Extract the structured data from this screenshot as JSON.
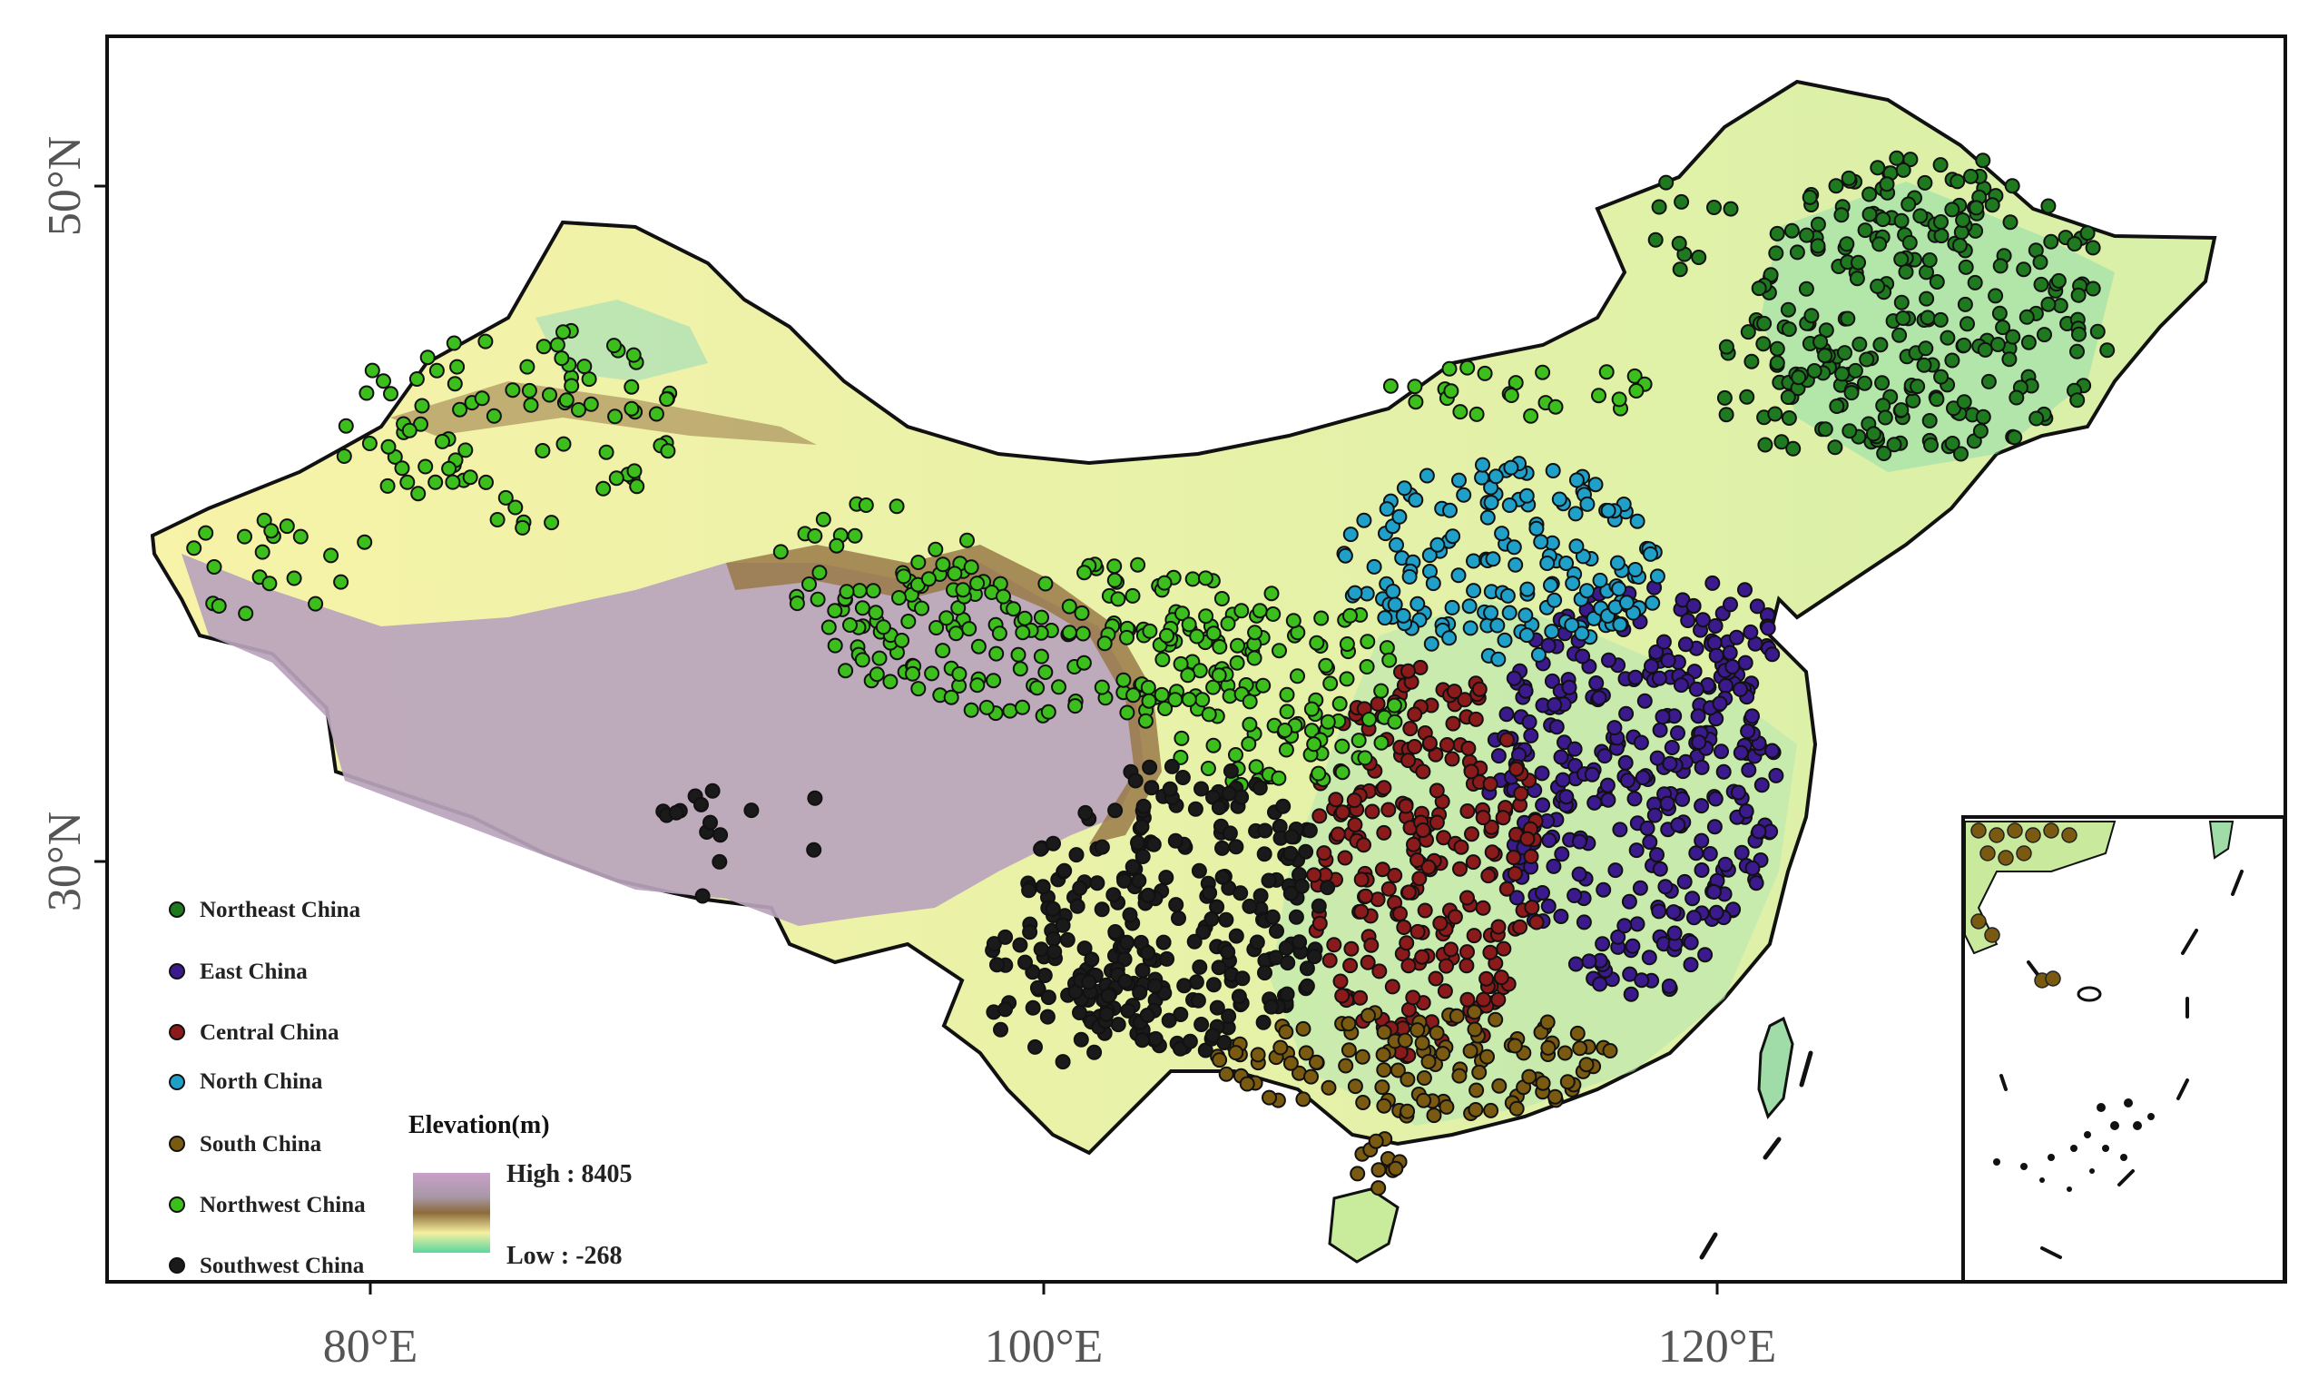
{
  "axes": {
    "x_ticks": [
      {
        "lon": 80,
        "label": "80°E"
      },
      {
        "lon": 100,
        "label": "100°E"
      },
      {
        "lon": 120,
        "label": "120°E"
      }
    ],
    "y_ticks": [
      {
        "lat": 50,
        "label": "50°N"
      },
      {
        "lat": 30,
        "label": "30°N"
      }
    ]
  },
  "legend": {
    "regions": [
      {
        "label": "Northeast China",
        "color": "#1f7a1f"
      },
      {
        "label": "East China",
        "color": "#3a1a8c"
      },
      {
        "label": "Central China",
        "color": "#8b1a1a"
      },
      {
        "label": "North China",
        "color": "#1fa0c8"
      },
      {
        "label": "South China",
        "color": "#7a5a10"
      },
      {
        "label": "Northwest China",
        "color": "#3cbf1c"
      },
      {
        "label": "Southwest China",
        "color": "#1a1a1a"
      }
    ]
  },
  "elevation": {
    "title": "Elevation(m)",
    "high_label": "High : 8405",
    "low_label": "Low : -268",
    "colors": [
      "#c8a0c8",
      "#b0a0b8",
      "#8c6a3a",
      "#f5f0a0",
      "#5ad6a0"
    ]
  }
}
